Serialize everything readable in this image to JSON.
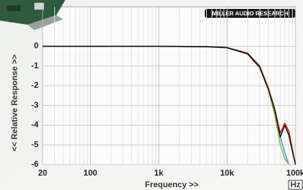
{
  "chart_data": {
    "type": "line",
    "logo": "MILLER AUDIO RESEARCH",
    "xlabel": "Frequency >>",
    "ylabel": "<< Relative Response >>",
    "unit_box": "Hz",
    "xscale": "log",
    "xlim": [
      20,
      100000
    ],
    "ylim": [
      -6,
      2
    ],
    "xticks": [
      20,
      100,
      {
        "value": 1000,
        "label": "1k"
      },
      {
        "value": 10000,
        "label": "10k"
      },
      {
        "value": 100000,
        "label": "100k"
      }
    ],
    "yticks": [
      0,
      -1,
      -2,
      -3,
      -4,
      -5,
      -6
    ],
    "x_minor_grid": [
      30,
      40,
      50,
      60,
      70,
      80,
      90,
      200,
      300,
      400,
      500,
      600,
      700,
      800,
      900,
      2000,
      3000,
      4000,
      5000,
      6000,
      7000,
      8000,
      9000,
      20000,
      30000,
      40000,
      50000,
      60000,
      70000,
      80000,
      90000
    ],
    "grid": true,
    "x": [
      20,
      100,
      1000,
      5000,
      10000,
      20000,
      30000,
      40000,
      50000,
      60000,
      70000,
      80000,
      90000,
      100000
    ],
    "series": [
      {
        "color": "#3aa0d8",
        "values": [
          0,
          0,
          0,
          -0.02,
          -0.08,
          -0.4,
          -1.1,
          -2.2,
          -3.3,
          -4.6,
          -5.4,
          -6.0,
          null,
          null
        ]
      },
      {
        "color": "#7cc04a",
        "values": [
          0,
          0,
          0,
          -0.02,
          -0.08,
          -0.4,
          -1.1,
          -2.2,
          -3.5,
          -5.0,
          -5.7,
          -6.0,
          null,
          null
        ]
      },
      {
        "color": "#d02020",
        "values": [
          0,
          0,
          0,
          -0.02,
          -0.06,
          -0.35,
          -1.0,
          -2.1,
          -3.2,
          -4.4,
          -3.9,
          -4.3,
          -5.2,
          -6.0
        ]
      },
      {
        "color": "#111111",
        "values": [
          0,
          0,
          0,
          -0.02,
          -0.07,
          -0.38,
          -1.05,
          -2.15,
          -3.25,
          -4.6,
          -4.0,
          -4.5,
          -5.3,
          -6.0
        ]
      }
    ]
  }
}
